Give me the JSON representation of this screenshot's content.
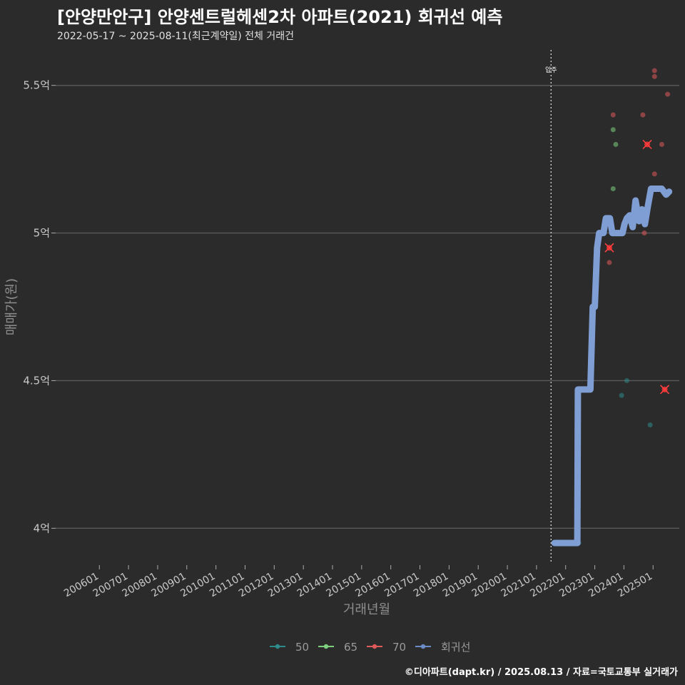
{
  "header": {
    "title": "[안양만안구] 안양센트럴헤센2차 아파트(2021) 회귀선 예측",
    "subtitle": "2022-05-17 ~ 2025-08-11(최근계약일) 전체 거래건"
  },
  "footer": {
    "credit": "©디아파트(dapt.kr) / 2025.08.13 / 자료=국토교통부 실거래가"
  },
  "chart_data": {
    "type": "scatter",
    "xlabel": "거래년월",
    "ylabel": "매매가(원)",
    "x_tick_labels": [
      "200601",
      "200701",
      "200801",
      "200901",
      "201001",
      "201101",
      "201201",
      "201301",
      "201401",
      "201501",
      "201601",
      "201701",
      "201801",
      "201901",
      "202001",
      "202101",
      "202201",
      "202301",
      "202401",
      "202501"
    ],
    "y_ticks": [
      4.0,
      4.5,
      5.0,
      5.5
    ],
    "y_tick_labels": [
      "4억",
      "4.5억",
      "5억",
      "5.5억"
    ],
    "ylim": [
      3.88,
      5.62
    ],
    "xlim": [
      2004.5,
      2025.9
    ],
    "annotation": {
      "x": 2021.5,
      "label": "입주"
    },
    "legend": [
      {
        "name": "50",
        "color": "#2e8b8b"
      },
      {
        "name": "65",
        "color": "#7ed07e"
      },
      {
        "name": "70",
        "color": "#e05a5a"
      },
      {
        "name": "회귀선",
        "color": "#6a8cc6"
      }
    ],
    "series": [
      {
        "name": "50",
        "color": "#2e8b8b",
        "points": [
          [
            2022.45,
            3.95
          ],
          [
            2023.92,
            4.45
          ],
          [
            2024.1,
            4.5
          ],
          [
            2024.9,
            4.35
          ]
        ]
      },
      {
        "name": "65",
        "color": "#7ed07e",
        "points": [
          [
            2023.63,
            5.35
          ],
          [
            2023.72,
            5.3
          ],
          [
            2023.63,
            5.15
          ]
        ]
      },
      {
        "name": "70",
        "color": "#e05a5a",
        "points": [
          [
            2023.63,
            5.4
          ],
          [
            2023.5,
            4.95
          ],
          [
            2023.5,
            4.9
          ],
          [
            2024.65,
            5.4
          ],
          [
            2025.05,
            5.55
          ],
          [
            2025.05,
            5.53
          ],
          [
            2025.5,
            5.47
          ],
          [
            2024.8,
            5.3
          ],
          [
            2025.3,
            5.3
          ],
          [
            2025.05,
            5.2
          ],
          [
            2024.7,
            5.0
          ],
          [
            2025.4,
            4.47
          ]
        ]
      }
    ],
    "crossed_points": [
      [
        2023.5,
        4.95
      ],
      [
        2024.8,
        5.3
      ],
      [
        2025.4,
        4.47
      ]
    ],
    "regression": {
      "name": "회귀선",
      "points": [
        [
          2021.62,
          3.95
        ],
        [
          2022.3,
          3.95
        ],
        [
          2022.4,
          3.95
        ],
        [
          2022.42,
          4.47
        ],
        [
          2022.85,
          4.47
        ],
        [
          2022.93,
          4.75
        ],
        [
          2023.0,
          4.75
        ],
        [
          2023.08,
          4.95
        ],
        [
          2023.15,
          5.0
        ],
        [
          2023.3,
          5.0
        ],
        [
          2023.38,
          5.05
        ],
        [
          2023.52,
          5.05
        ],
        [
          2023.6,
          5.0
        ],
        [
          2023.95,
          5.0
        ],
        [
          2024.02,
          5.03
        ],
        [
          2024.1,
          5.05
        ],
        [
          2024.2,
          5.06
        ],
        [
          2024.3,
          5.02
        ],
        [
          2024.4,
          5.11
        ],
        [
          2024.52,
          5.04
        ],
        [
          2024.62,
          5.08
        ],
        [
          2024.72,
          5.03
        ],
        [
          2024.82,
          5.09
        ],
        [
          2024.93,
          5.15
        ],
        [
          2025.3,
          5.15
        ],
        [
          2025.45,
          5.13
        ],
        [
          2025.55,
          5.14
        ]
      ]
    }
  }
}
